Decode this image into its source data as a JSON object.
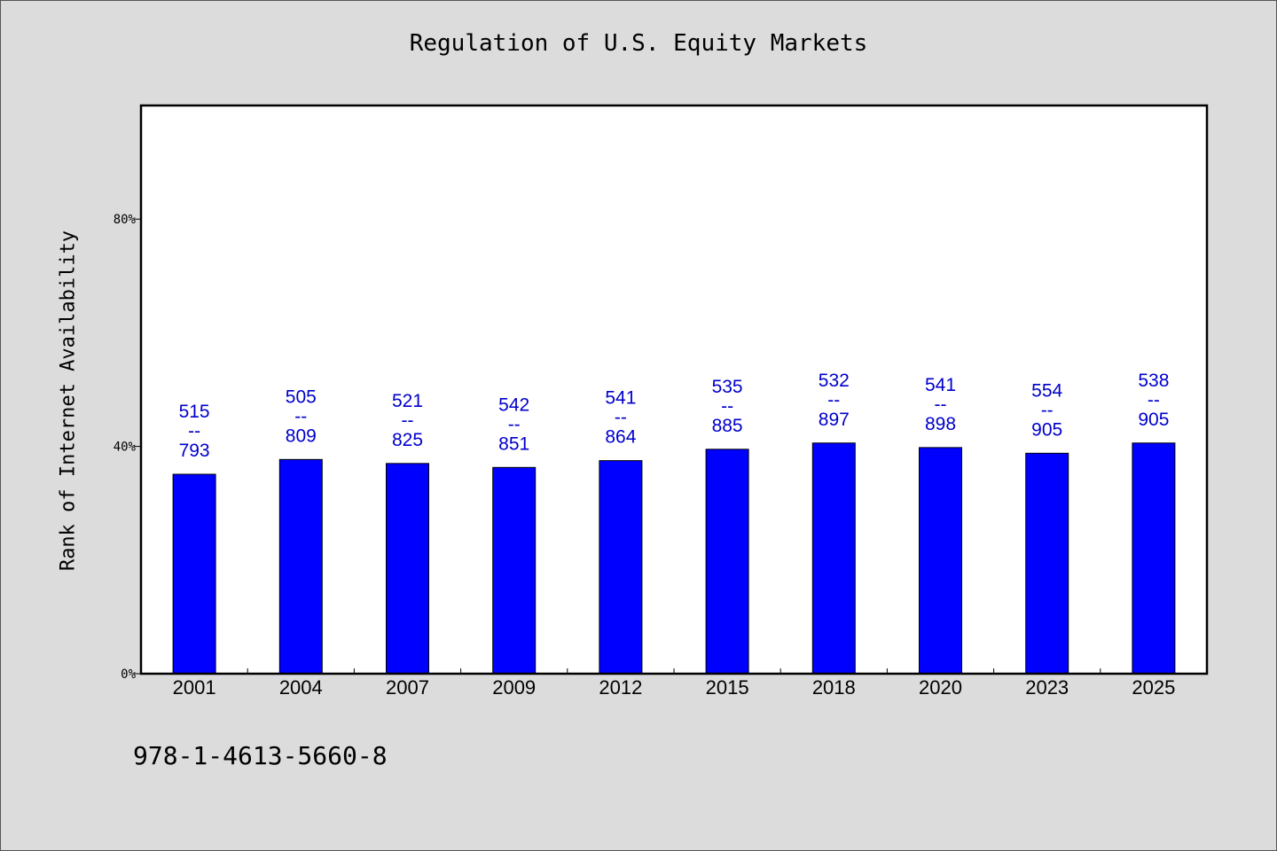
{
  "chart_data": {
    "type": "bar",
    "title": "Regulation of U.S. Equity Markets",
    "xlabel": "",
    "ylabel": "Rank of Internet Availability",
    "ylim": [
      0,
      100
    ],
    "yticks": [
      {
        "value": 0,
        "label": "0%"
      },
      {
        "value": 40,
        "label": "40%"
      },
      {
        "value": 80,
        "label": "80%"
      }
    ],
    "categories": [
      "2001",
      "2004",
      "2007",
      "2009",
      "2012",
      "2015",
      "2018",
      "2020",
      "2023",
      "2025"
    ],
    "values": [
      35.1,
      37.7,
      37.0,
      36.3,
      37.5,
      39.5,
      40.6,
      39.8,
      38.8,
      40.6
    ],
    "labels": [
      [
        "515",
        "--",
        "793"
      ],
      [
        "505",
        "--",
        "809"
      ],
      [
        "521",
        "--",
        "825"
      ],
      [
        "542",
        "--",
        "851"
      ],
      [
        "541",
        "--",
        "864"
      ],
      [
        "535",
        "--",
        "885"
      ],
      [
        "532",
        "--",
        "897"
      ],
      [
        "541",
        "--",
        "898"
      ],
      [
        "554",
        "--",
        "905"
      ],
      [
        "538",
        "--",
        "905"
      ]
    ],
    "bar_color": "#0000ff",
    "label_color": "#0000cc",
    "grid": false,
    "legend": "none"
  },
  "footer": {
    "code": "978-1-4613-5660-8"
  }
}
